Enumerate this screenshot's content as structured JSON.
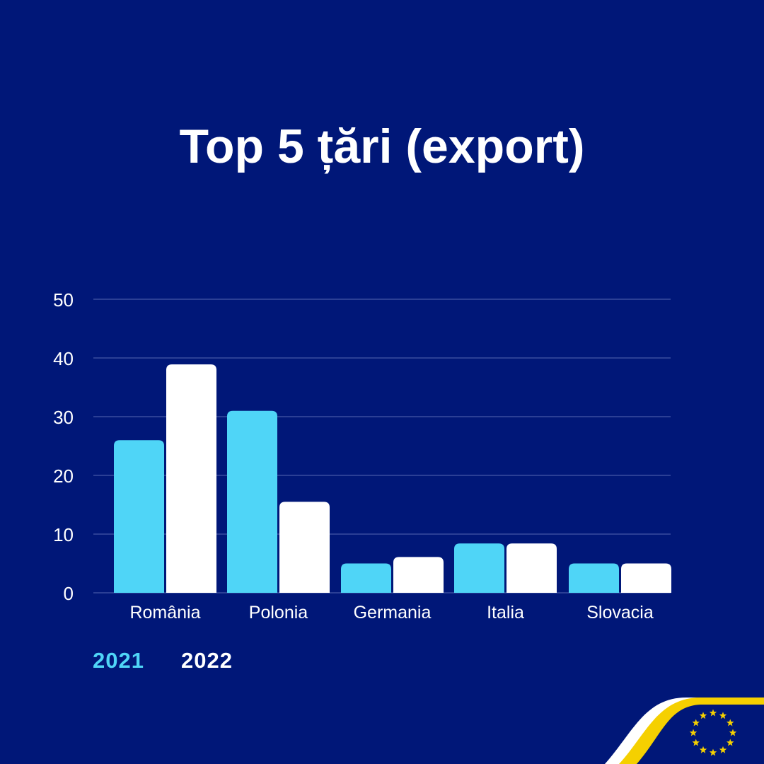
{
  "colors": {
    "background": "#001778",
    "series_2021": "#4FD5F7",
    "series_2022": "#FFFFFF",
    "grid": "#2B3F95",
    "text": "#FFFFFF",
    "accent_yellow": "#F5D000"
  },
  "chart_data": {
    "type": "bar",
    "title": "Top 5 țări (export)",
    "xlabel": "",
    "ylabel": "",
    "ylim": [
      0,
      50
    ],
    "yticks": [
      0,
      10,
      20,
      30,
      40,
      50
    ],
    "grid": true,
    "legend_position": "bottom-left",
    "categories": [
      "România",
      "Polonia",
      "Germania",
      "Italia",
      "Slovacia"
    ],
    "series": [
      {
        "name": "2021",
        "values": [
          26,
          31,
          5,
          8.4,
          5
        ]
      },
      {
        "name": "2022",
        "values": [
          38.9,
          15.5,
          6.1,
          8.4,
          5
        ]
      }
    ]
  },
  "logo": {
    "icon": "eu-stars-icon",
    "stars": 12
  }
}
